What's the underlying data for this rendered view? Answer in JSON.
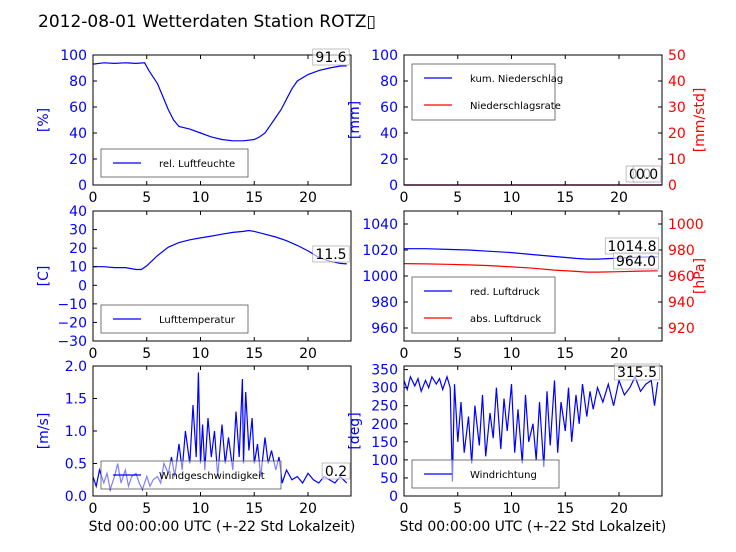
{
  "title": "2012-08-01 Wetterdaten Station ROTZ",
  "title_glyph": "▯",
  "colors": {
    "primary": "#0000ff",
    "secondary": "#ff0000",
    "frame": "#000000",
    "legend_border": "#555555"
  },
  "chart_data": [
    {
      "id": "humidity",
      "type": "line",
      "xlim": [
        0,
        24
      ],
      "xticks": [
        "0",
        "5",
        "10",
        "15",
        "20"
      ],
      "ylim": [
        0,
        100
      ],
      "yticks": [
        "0",
        "20",
        "40",
        "60",
        "80",
        "100"
      ],
      "ylabel": "[%]",
      "xlabel": "",
      "readouts": [
        "91.6"
      ],
      "legend": {
        "position": "lower-left",
        "entries": [
          "rel. Luftfeuchte"
        ]
      },
      "series": [
        {
          "name": "rel. Luftfeuchte",
          "axis": "left",
          "color": "primary",
          "x": [
            0,
            1,
            2,
            3,
            4,
            4.8,
            5.2,
            6,
            6.5,
            7,
            7.5,
            8,
            9,
            10,
            11,
            12,
            13,
            14,
            15,
            15.5,
            16,
            16.5,
            17,
            17.5,
            18,
            18.5,
            19,
            20,
            21,
            22,
            23,
            23.6
          ],
          "y": [
            93,
            94,
            93.5,
            94,
            93.5,
            94,
            88,
            78,
            68,
            58,
            50,
            45,
            43,
            40,
            37,
            35,
            34,
            34,
            35,
            37,
            40,
            46,
            52,
            58,
            66,
            74,
            80,
            85,
            88,
            90,
            91.5,
            91.6
          ]
        }
      ]
    },
    {
      "id": "precipitation",
      "type": "line",
      "xlim": [
        0,
        24
      ],
      "xticks": [
        "0",
        "5",
        "10",
        "15",
        "20"
      ],
      "ylim": [
        0,
        100
      ],
      "yticks": [
        "0",
        "20",
        "40",
        "60",
        "80",
        "100"
      ],
      "y2lim": [
        0,
        50
      ],
      "y2ticks": [
        "0",
        "10",
        "20",
        "30",
        "40",
        "50"
      ],
      "ylabel": "[mm]",
      "y2label": "[mm/std]",
      "xlabel": "",
      "readouts": [
        "0.0",
        "0.0"
      ],
      "legend": {
        "position": "upper-left",
        "entries": [
          "kum. Niederschlag",
          "Niederschlagsrate"
        ]
      },
      "series": [
        {
          "name": "kum. Niederschlag",
          "axis": "left",
          "color": "primary",
          "x": [
            0,
            24
          ],
          "y": [
            0,
            0
          ]
        },
        {
          "name": "Niederschlagsrate",
          "axis": "right",
          "color": "secondary",
          "x": [
            0,
            24
          ],
          "y": [
            0,
            0
          ]
        }
      ]
    },
    {
      "id": "temperature",
      "type": "line",
      "xlim": [
        0,
        24
      ],
      "xticks": [
        "0",
        "5",
        "10",
        "15",
        "20"
      ],
      "ylim": [
        -30,
        40
      ],
      "yticks": [
        "−30",
        "−20",
        "−10",
        "0",
        "10",
        "20",
        "30",
        "40"
      ],
      "ylabel": "[C]",
      "xlabel": "",
      "readouts": [
        "11.5"
      ],
      "legend": {
        "position": "lower-left",
        "entries": [
          "Lufttemperatur"
        ]
      },
      "series": [
        {
          "name": "Lufttemperatur",
          "axis": "left",
          "color": "primary",
          "x": [
            0,
            1,
            2,
            3,
            4,
            4.5,
            5,
            6,
            7,
            8,
            9,
            10,
            11,
            12,
            13,
            14,
            14.5,
            15,
            16,
            17,
            18,
            19,
            20,
            21,
            22,
            23,
            23.6
          ],
          "y": [
            10,
            10,
            9.5,
            9.5,
            8.5,
            8.5,
            10.5,
            16,
            20.5,
            23,
            24.5,
            25.5,
            26.5,
            27.5,
            28.5,
            29,
            29.5,
            29,
            27.5,
            26,
            24,
            21.5,
            18.5,
            15,
            13,
            11.8,
            11.5
          ]
        }
      ]
    },
    {
      "id": "pressure",
      "type": "line",
      "xlim": [
        0,
        24
      ],
      "xticks": [
        "0",
        "5",
        "10",
        "15",
        "20"
      ],
      "ylim": [
        950,
        1050
      ],
      "yticks": [
        "960",
        "980",
        "1000",
        "1020",
        "1040"
      ],
      "y2lim": [
        910,
        1010
      ],
      "y2ticks": [
        "920",
        "940",
        "960",
        "980",
        "1000"
      ],
      "ylabel": "",
      "y2label": "[hPa]",
      "xlabel": "",
      "readouts": [
        "1014.8",
        "964.0"
      ],
      "legend": {
        "position": "lower-left",
        "entries": [
          "red. Luftdruck",
          "abs. Luftdruck"
        ]
      },
      "series": [
        {
          "name": "red. Luftdruck",
          "axis": "left",
          "color": "primary",
          "x": [
            0,
            2,
            4,
            6,
            8,
            10,
            12,
            14,
            16,
            17,
            18,
            20,
            22,
            23.6
          ],
          "y": [
            1021,
            1021,
            1020.5,
            1020,
            1019,
            1018,
            1016.5,
            1015,
            1013.5,
            1013,
            1013,
            1013.8,
            1014.5,
            1014.8
          ]
        },
        {
          "name": "abs. Luftdruck",
          "axis": "right",
          "color": "secondary",
          "x": [
            0,
            2,
            4,
            6,
            8,
            10,
            12,
            14,
            16,
            17,
            18,
            20,
            22,
            23.6
          ],
          "y": [
            969.5,
            969.3,
            969,
            968.5,
            968,
            967,
            966,
            964.5,
            963.5,
            963,
            963,
            963.3,
            963.8,
            964
          ]
        }
      ]
    },
    {
      "id": "wind-speed",
      "type": "line",
      "xlim": [
        0,
        24
      ],
      "xticks": [
        "0",
        "5",
        "10",
        "15",
        "20"
      ],
      "ylim": [
        0,
        2
      ],
      "yticks": [
        "0.0",
        "0.5",
        "1.0",
        "1.5",
        "2.0"
      ],
      "ylabel": "[m/s]",
      "xlabel": "Std 00:00:00 UTC (+-22 Std Lokalzeit)",
      "readouts": [
        "0.2"
      ],
      "legend": {
        "position": "lower-center",
        "entries": [
          "Windgeschwindigkeit"
        ]
      },
      "series": [
        {
          "name": "Windgeschwindigkeit",
          "axis": "left",
          "color": "primary",
          "x": [
            0,
            0.3,
            0.6,
            1,
            1.3,
            1.6,
            2,
            2.3,
            2.6,
            3,
            3.3,
            3.6,
            4,
            4.3,
            4.6,
            5,
            5.3,
            5.6,
            6,
            6.3,
            6.6,
            7,
            7.3,
            7.6,
            8,
            8.3,
            8.6,
            9,
            9.3,
            9.6,
            9.8,
            10,
            10.2,
            10.4,
            10.7,
            11,
            11.3,
            11.6,
            12,
            12.3,
            12.6,
            13,
            13.3,
            13.6,
            13.9,
            14,
            14.2,
            14.5,
            14.8,
            15,
            15.3,
            15.6,
            16,
            16.3,
            16.6,
            17,
            17.3,
            17.6,
            18,
            18.5,
            19,
            19.5,
            20,
            20.5,
            21,
            21.5,
            22,
            22.5,
            23,
            23.3,
            23.6
          ],
          "y": [
            0.3,
            0.15,
            0.4,
            0.2,
            0.35,
            0.1,
            0.3,
            0.5,
            0.2,
            0.4,
            0.15,
            0.3,
            0.35,
            0.2,
            0.1,
            0.3,
            0.15,
            0.25,
            0.3,
            0.2,
            0.5,
            0.35,
            0.6,
            0.3,
            0.8,
            0.4,
            1.0,
            0.5,
            1.4,
            0.6,
            1.9,
            0.5,
            1.1,
            0.4,
            1.2,
            0.6,
            1.0,
            0.3,
            1.1,
            0.5,
            0.9,
            0.4,
            1.3,
            0.6,
            1.8,
            0.5,
            1.6,
            0.7,
            1.2,
            0.5,
            0.8,
            0.3,
            0.9,
            0.5,
            0.7,
            0.4,
            0.6,
            0.2,
            0.4,
            0.25,
            0.3,
            0.2,
            0.35,
            0.25,
            0.2,
            0.3,
            0.25,
            0.2,
            0.3,
            0.25,
            0.2
          ]
        }
      ]
    },
    {
      "id": "wind-direction",
      "type": "line",
      "xlim": [
        0,
        24
      ],
      "xticks": [
        "0",
        "5",
        "10",
        "15",
        "20"
      ],
      "ylim": [
        0,
        360
      ],
      "yticks": [
        "0",
        "50",
        "100",
        "150",
        "200",
        "250",
        "300",
        "350"
      ],
      "ylabel": "[deg]",
      "xlabel": "Std 00:00:00 UTC (+-22 Std Lokalzeit)",
      "readouts": [
        "315.5"
      ],
      "legend": {
        "position": "lower-left",
        "entries": [
          "Windrichtung"
        ]
      },
      "series": [
        {
          "name": "Windrichtung",
          "axis": "left",
          "color": "primary",
          "x": [
            0,
            0.3,
            0.6,
            1,
            1.3,
            1.6,
            2,
            2.3,
            2.6,
            3,
            3.3,
            3.6,
            4,
            4.3,
            4.5,
            4.7,
            5,
            5.3,
            5.6,
            6,
            6.3,
            6.6,
            7,
            7.3,
            7.6,
            8,
            8.3,
            8.6,
            9,
            9.3,
            9.6,
            10,
            10.3,
            10.6,
            11,
            11.3,
            11.6,
            12,
            12.3,
            12.6,
            13,
            13.3,
            13.6,
            14,
            14.3,
            14.6,
            15,
            15.3,
            15.6,
            16,
            16.3,
            16.6,
            17,
            17.3,
            17.6,
            18,
            18.5,
            19,
            19.5,
            20,
            20.5,
            21,
            21.5,
            22,
            22.5,
            23,
            23.3,
            23.6
          ],
          "y": [
            320,
            295,
            330,
            305,
            325,
            290,
            320,
            300,
            330,
            310,
            325,
            295,
            330,
            300,
            40,
            310,
            150,
            260,
            120,
            220,
            90,
            250,
            140,
            280,
            110,
            230,
            160,
            300,
            130,
            270,
            180,
            310,
            120,
            240,
            90,
            280,
            150,
            200,
            100,
            260,
            80,
            290,
            140,
            320,
            120,
            260,
            180,
            300,
            150,
            280,
            200,
            310,
            220,
            290,
            240,
            300,
            260,
            310,
            250,
            320,
            280,
            300,
            330,
            290,
            310,
            320,
            250,
            315.5
          ]
        }
      ]
    }
  ]
}
